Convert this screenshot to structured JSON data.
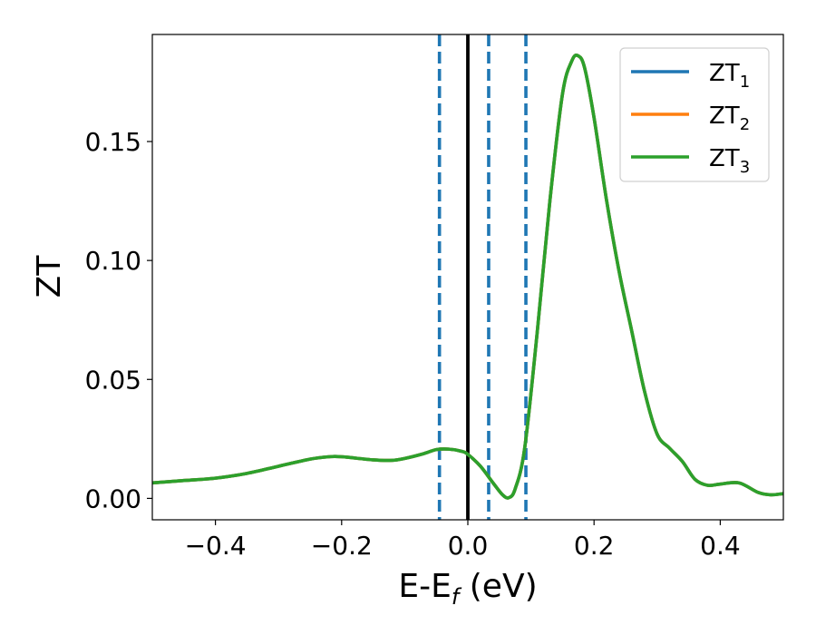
{
  "chart_data": {
    "type": "line",
    "xlabel": {
      "main": "E-E",
      "sub": "f",
      "unit": " (eV)"
    },
    "ylabel": "ZT",
    "xlim": [
      -0.5,
      0.5
    ],
    "ylim": [
      -0.009,
      0.195
    ],
    "x_ticks": [
      {
        "value": -0.4,
        "label": "−0.4"
      },
      {
        "value": -0.2,
        "label": "−0.2"
      },
      {
        "value": 0.0,
        "label": "0.0"
      },
      {
        "value": 0.2,
        "label": "0.2"
      },
      {
        "value": 0.4,
        "label": "0.4"
      }
    ],
    "y_ticks": [
      {
        "value": 0.0,
        "label": "0.00"
      },
      {
        "value": 0.05,
        "label": "0.05"
      },
      {
        "value": 0.1,
        "label": "0.10"
      },
      {
        "value": 0.15,
        "label": "0.15"
      }
    ],
    "grid": false,
    "legend_position": "top-right",
    "vertical_lines": [
      {
        "x": -0.045,
        "style": "dashed",
        "color": "#1f77b4"
      },
      {
        "x": 0.0,
        "style": "solid",
        "color": "#000000"
      },
      {
        "x": 0.033,
        "style": "dashed",
        "color": "#1f77b4"
      },
      {
        "x": 0.092,
        "style": "dashed",
        "color": "#1f77b4"
      }
    ],
    "x": [
      -0.5,
      -0.45,
      -0.4,
      -0.35,
      -0.3,
      -0.25,
      -0.22,
      -0.2,
      -0.15,
      -0.12,
      -0.1,
      -0.07,
      -0.05,
      -0.03,
      -0.01,
      0.0,
      0.02,
      0.04,
      0.055,
      0.065,
      0.075,
      0.09,
      0.11,
      0.13,
      0.15,
      0.165,
      0.175,
      0.185,
      0.2,
      0.22,
      0.24,
      0.26,
      0.28,
      0.3,
      0.32,
      0.34,
      0.36,
      0.38,
      0.4,
      0.43,
      0.46,
      0.48,
      0.5
    ],
    "series": [
      {
        "name": "ZT",
        "sub": "1",
        "color": "#1f77b4",
        "values": [
          0.0065,
          0.0075,
          0.0085,
          0.0105,
          0.0135,
          0.0165,
          0.0175,
          0.0175,
          0.0162,
          0.016,
          0.0168,
          0.0188,
          0.0205,
          0.0207,
          0.0198,
          0.0185,
          0.0135,
          0.0065,
          0.0015,
          0.0003,
          0.004,
          0.021,
          0.07,
          0.125,
          0.17,
          0.184,
          0.186,
          0.181,
          0.16,
          0.125,
          0.095,
          0.07,
          0.045,
          0.027,
          0.021,
          0.0155,
          0.008,
          0.0055,
          0.006,
          0.0065,
          0.0025,
          0.0015,
          0.002
        ]
      },
      {
        "name": "ZT",
        "sub": "2",
        "color": "#ff7f0e",
        "values": [
          0.0065,
          0.0075,
          0.0085,
          0.0105,
          0.0135,
          0.0165,
          0.0175,
          0.0175,
          0.0162,
          0.016,
          0.0168,
          0.0188,
          0.0205,
          0.0207,
          0.0198,
          0.0185,
          0.0135,
          0.0065,
          0.0015,
          0.0003,
          0.004,
          0.021,
          0.07,
          0.125,
          0.17,
          0.184,
          0.186,
          0.181,
          0.16,
          0.125,
          0.095,
          0.07,
          0.045,
          0.027,
          0.021,
          0.0155,
          0.008,
          0.0055,
          0.006,
          0.0065,
          0.0025,
          0.0015,
          0.002
        ]
      },
      {
        "name": "ZT",
        "sub": "3",
        "color": "#2ca02c",
        "values": [
          0.0065,
          0.0075,
          0.0085,
          0.0105,
          0.0135,
          0.0165,
          0.0175,
          0.0175,
          0.0162,
          0.016,
          0.0168,
          0.0188,
          0.0205,
          0.0207,
          0.0198,
          0.0185,
          0.0135,
          0.0065,
          0.0015,
          0.0003,
          0.004,
          0.021,
          0.07,
          0.125,
          0.17,
          0.184,
          0.186,
          0.181,
          0.16,
          0.125,
          0.095,
          0.07,
          0.045,
          0.027,
          0.021,
          0.0155,
          0.008,
          0.0055,
          0.006,
          0.0065,
          0.0025,
          0.0015,
          0.002
        ]
      }
    ]
  }
}
